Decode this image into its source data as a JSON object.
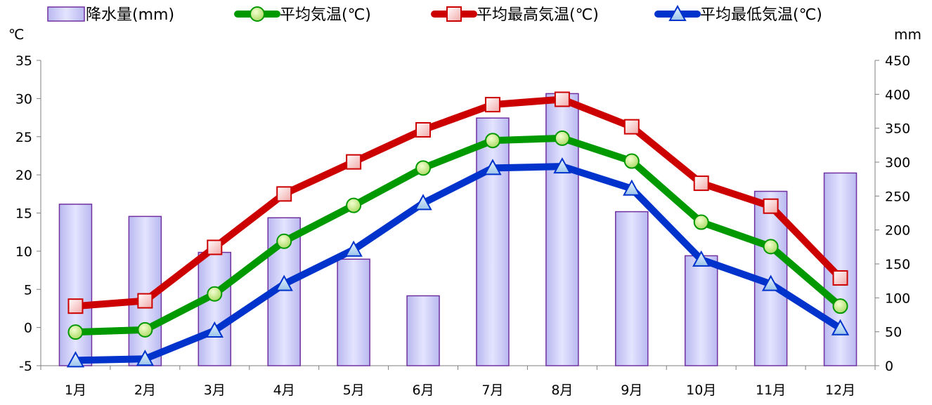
{
  "chart_data": {
    "type": "bar+line",
    "categories": [
      "1月",
      "2月",
      "3月",
      "4月",
      "5月",
      "6月",
      "7月",
      "8月",
      "9月",
      "10月",
      "11月",
      "12月"
    ],
    "bar_series": {
      "name": "降水量(mm)",
      "values": [
        238,
        220,
        167,
        218,
        157,
        103,
        365,
        401,
        227,
        162,
        257,
        284
      ],
      "color": "#ccccff",
      "border": "#7030a0"
    },
    "series": [
      {
        "name": "平均気温(℃)",
        "values": [
          -0.6,
          -0.3,
          4.4,
          11.3,
          16.0,
          20.9,
          24.5,
          24.8,
          21.8,
          13.8,
          10.6,
          2.8
        ],
        "color": "#009900",
        "marker": "circle"
      },
      {
        "name": "平均最高気温(℃)",
        "values": [
          2.8,
          3.5,
          10.5,
          17.5,
          21.7,
          25.9,
          29.2,
          29.9,
          26.3,
          18.9,
          15.9,
          6.5
        ],
        "color": "#cc0000",
        "marker": "square"
      },
      {
        "name": "平均最低気温(℃)",
        "values": [
          -4.3,
          -4.1,
          -0.4,
          5.7,
          10.2,
          16.3,
          20.9,
          21.1,
          18.2,
          8.9,
          5.7,
          -0.1
        ],
        "color": "#0033cc",
        "marker": "triangle"
      }
    ],
    "y_left": {
      "unit": "℃",
      "min": -5,
      "max": 35,
      "ticks": [
        -5,
        0,
        5,
        10,
        15,
        20,
        25,
        30,
        35
      ]
    },
    "y_right": {
      "unit": "mm",
      "min": 0,
      "max": 450,
      "ticks": [
        0,
        50,
        100,
        150,
        200,
        250,
        300,
        350,
        400,
        450
      ]
    },
    "legend_position": "top",
    "grid": false
  }
}
